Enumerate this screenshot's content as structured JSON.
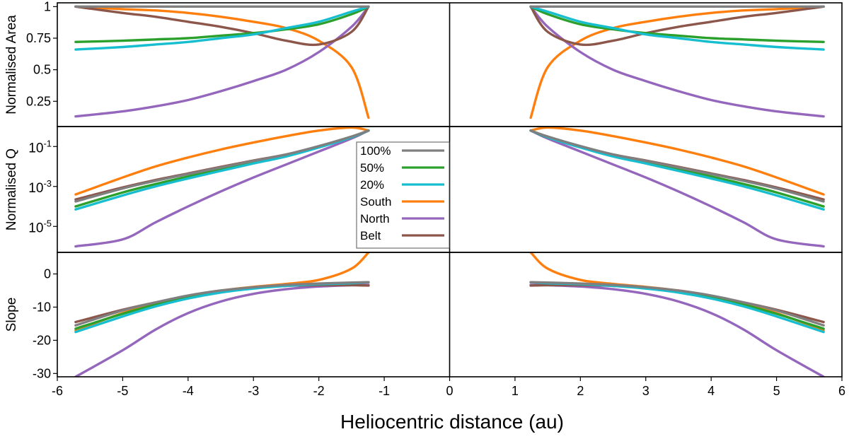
{
  "chart_data": {
    "type": "line",
    "xlabel": "Heliocentric distance (au)",
    "x_ticks": [
      "-6",
      "-5",
      "-4",
      "-3",
      "-2",
      "-1",
      "0",
      "1",
      "2",
      "3",
      "4",
      "5",
      "6"
    ],
    "xlim": [
      -6,
      6
    ],
    "series_styles": [
      {
        "name": "100%",
        "color": "#7f7f7f"
      },
      {
        "name": "50%",
        "color": "#2ca02c"
      },
      {
        "name": "20%",
        "color": "#17becf"
      },
      {
        "name": "South",
        "color": "#ff7f0e"
      },
      {
        "name": "North",
        "color": "#9467bd"
      },
      {
        "name": "Belt",
        "color": "#8c564b"
      }
    ],
    "legend": {
      "entries": [
        "100%",
        "50%",
        "20%",
        "South",
        "North",
        "Belt"
      ],
      "placement": "center"
    },
    "panels": [
      {
        "id": "area",
        "ylabel": "Normalised Area",
        "scale": "linear",
        "ylim": [
          0.05,
          1.03
        ],
        "y_ticks": [
          {
            "value": 1,
            "label": "1",
            "size": "large"
          },
          {
            "value": 0.75,
            "label": "0.75",
            "size": "small"
          },
          {
            "value": 0.5,
            "label": "0.5",
            "size": "large"
          },
          {
            "value": 0.25,
            "label": "0.25",
            "size": "small"
          }
        ],
        "x": [
          1.24,
          1.5,
          2.0,
          2.5,
          3.0,
          3.5,
          4.0,
          4.5,
          5.0,
          5.72
        ],
        "series": [
          {
            "name": "100%",
            "values": [
              1.0,
              1.0,
              1.0,
              1.0,
              1.0,
              1.0,
              1.0,
              1.0,
              1.0,
              1.0
            ]
          },
          {
            "name": "50%",
            "values": [
              1.0,
              0.94,
              0.86,
              0.82,
              0.79,
              0.77,
              0.75,
              0.74,
              0.73,
              0.72
            ]
          },
          {
            "name": "20%",
            "values": [
              1.0,
              0.96,
              0.88,
              0.83,
              0.78,
              0.75,
              0.72,
              0.7,
              0.68,
              0.66
            ]
          },
          {
            "name": "South",
            "values": [
              0.12,
              0.52,
              0.73,
              0.83,
              0.88,
              0.92,
              0.95,
              0.97,
              0.98,
              1.0
            ]
          },
          {
            "name": "North",
            "values": [
              1.0,
              0.84,
              0.64,
              0.5,
              0.41,
              0.33,
              0.26,
              0.21,
              0.17,
              0.13
            ]
          },
          {
            "name": "Belt",
            "values": [
              1.0,
              0.8,
              0.7,
              0.73,
              0.79,
              0.84,
              0.88,
              0.92,
              0.95,
              1.0
            ]
          }
        ]
      },
      {
        "id": "q",
        "ylabel": "Normalised Q",
        "scale": "log10",
        "ylim": [
          -6.3,
          0.0
        ],
        "y_ticks": [
          {
            "value": -1,
            "label": "10",
            "sup": "-1"
          },
          {
            "value": -3,
            "label": "10",
            "sup": "-3"
          },
          {
            "value": -5,
            "label": "10",
            "sup": "-5"
          }
        ],
        "x": [
          1.24,
          1.5,
          2.0,
          2.5,
          3.0,
          3.5,
          4.0,
          4.5,
          5.0,
          5.72
        ],
        "series": [
          {
            "name": "100%",
            "values": [
              -0.2,
              -0.5,
              -0.98,
              -1.4,
              -1.72,
              -2.05,
              -2.38,
              -2.72,
              -3.1,
              -3.75
            ]
          },
          {
            "name": "50%",
            "values": [
              -0.2,
              -0.52,
              -1.02,
              -1.45,
              -1.8,
              -2.15,
              -2.5,
              -2.88,
              -3.3,
              -4.0
            ]
          },
          {
            "name": "20%",
            "values": [
              -0.2,
              -0.54,
              -1.05,
              -1.5,
              -1.85,
              -2.22,
              -2.6,
              -3.0,
              -3.45,
              -4.15
            ]
          },
          {
            "name": "South",
            "values": [
              -0.2,
              -0.05,
              -0.2,
              -0.48,
              -0.8,
              -1.15,
              -1.55,
              -2.0,
              -2.55,
              -3.4
            ]
          },
          {
            "name": "North",
            "values": [
              -0.2,
              -0.6,
              -1.25,
              -1.9,
              -2.55,
              -3.25,
              -4.0,
              -4.8,
              -5.65,
              -6.0
            ]
          },
          {
            "name": "Belt",
            "values": [
              -0.2,
              -0.55,
              -1.0,
              -1.4,
              -1.7,
              -2.02,
              -2.35,
              -2.68,
              -3.05,
              -3.65
            ]
          }
        ]
      },
      {
        "id": "slope",
        "ylabel": "Slope",
        "scale": "linear",
        "ylim": [
          -31,
          6.5
        ],
        "y_ticks": [
          {
            "value": 0,
            "label": "0"
          },
          {
            "value": -10,
            "label": "-10"
          },
          {
            "value": -20,
            "label": "-20"
          },
          {
            "value": -30,
            "label": "-30"
          }
        ],
        "x": [
          1.24,
          1.5,
          2.0,
          2.5,
          3.0,
          3.5,
          4.0,
          4.5,
          5.0,
          5.72
        ],
        "series": [
          {
            "name": "100%",
            "values": [
              -2.5,
              -2.6,
              -2.9,
              -3.3,
              -4.0,
              -5.0,
              -6.5,
              -8.6,
              -11.0,
              -15.5
            ]
          },
          {
            "name": "50%",
            "values": [
              -2.5,
              -2.7,
              -3.0,
              -3.4,
              -4.2,
              -5.3,
              -7.0,
              -9.3,
              -12.0,
              -16.5
            ]
          },
          {
            "name": "20%",
            "values": [
              -2.5,
              -2.8,
              -3.1,
              -3.6,
              -4.4,
              -5.6,
              -7.4,
              -9.8,
              -12.8,
              -17.5
            ]
          },
          {
            "name": "South",
            "values": [
              6.5,
              1.6,
              -1.8,
              -3.0,
              -3.9,
              -5.0,
              -6.6,
              -8.9,
              -11.8,
              -17.0
            ]
          },
          {
            "name": "North",
            "values": [
              -3.3,
              -3.4,
              -3.8,
              -4.6,
              -6.0,
              -8.3,
              -11.8,
              -16.8,
              -23.0,
              -31.0
            ]
          },
          {
            "name": "Belt",
            "values": [
              -3.5,
              -3.4,
              -3.4,
              -3.6,
              -4.2,
              -5.2,
              -6.7,
              -8.6,
              -10.8,
              -14.5
            ]
          }
        ]
      }
    ]
  }
}
